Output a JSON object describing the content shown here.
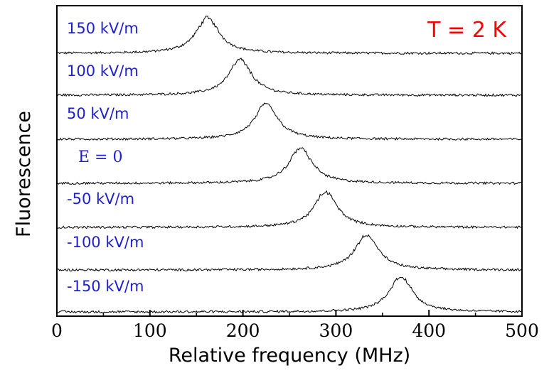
{
  "chart_data": {
    "type": "line",
    "xlabel": "Relative frequency (MHz)",
    "ylabel": "Fluorescence",
    "xlim": [
      0,
      500
    ],
    "xticks": [
      "0",
      "100",
      "200",
      "300",
      "400",
      "500"
    ],
    "annotation": "T = 2 K",
    "colors": {
      "trace": "#000000",
      "series_label": "#1f1fd0",
      "annotation": "#ff0000"
    },
    "series": [
      {
        "name": "150 kV/m",
        "peak_mhz": 162,
        "width_mhz": 30
      },
      {
        "name": "100 kV/m",
        "peak_mhz": 197,
        "width_mhz": 30
      },
      {
        "name": "50 kV/m",
        "peak_mhz": 225,
        "width_mhz": 30
      },
      {
        "name": "E = 0",
        "peak_mhz": 262,
        "width_mhz": 30
      },
      {
        "name": "-50 kV/m",
        "peak_mhz": 289,
        "width_mhz": 30
      },
      {
        "name": "-100 kV/m",
        "peak_mhz": 333,
        "width_mhz": 30
      },
      {
        "name": "-150 kV/m",
        "peak_mhz": 370,
        "width_mhz": 30
      }
    ]
  }
}
